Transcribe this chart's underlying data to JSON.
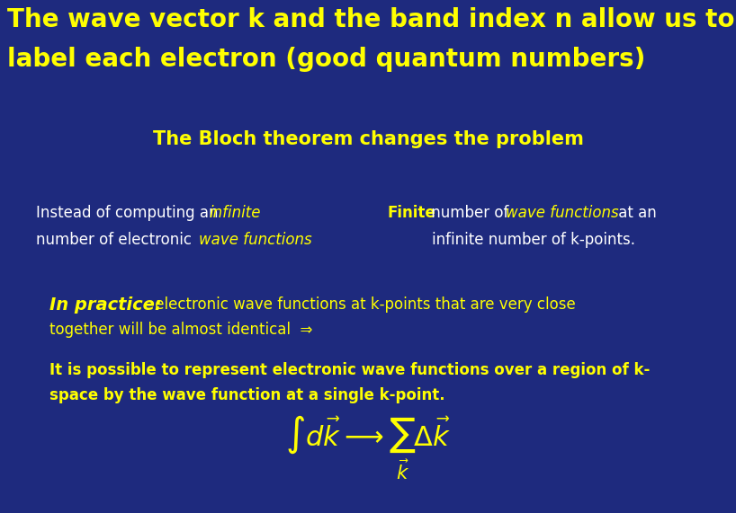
{
  "bg_color": "#1e2a7e",
  "yellow": "#ffff00",
  "white": "#ffffff",
  "title_line1": "The wave vector k and the band index n allow us to",
  "title_line2": "label each electron (good quantum numbers)",
  "title_fontsize": 20,
  "subtitle": "The Bloch theorem changes the problem",
  "subtitle_fontsize": 15,
  "body_fontsize": 12,
  "practice_label_fontsize": 14,
  "formula_fontsize": 22
}
